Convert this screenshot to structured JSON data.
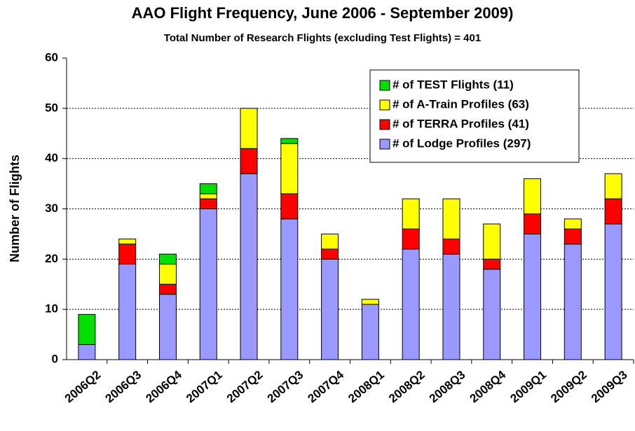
{
  "chart_data": {
    "type": "stacked-bar",
    "title": "AAO Flight Frequency, June 2006 - September 2009)",
    "subtitle": "Total Number of Research Flights (excluding Test Flights) = 401",
    "y_label": "Number of Flights",
    "categories": [
      "2006Q2",
      "2006Q3",
      "2006Q4",
      "2007Q1",
      "2007Q2",
      "2007Q3",
      "2007Q4",
      "2008Q1",
      "2008Q2",
      "2008Q3",
      "2008Q4",
      "2009Q1",
      "2009Q2",
      "2009Q3"
    ],
    "series": [
      {
        "name": "# of Lodge Profiles (297)",
        "color": "#9999ff",
        "values": [
          3,
          19,
          13,
          30,
          37,
          28,
          20,
          11,
          22,
          21,
          18,
          25,
          23,
          27
        ]
      },
      {
        "name": "# of TERRA Profiles (41)",
        "color": "#ff0000",
        "values": [
          0,
          4,
          2,
          2,
          5,
          5,
          2,
          0,
          4,
          3,
          2,
          4,
          3,
          5
        ]
      },
      {
        "name": "# of A-Train Profiles (63)",
        "color": "#ffff00",
        "values": [
          0,
          1,
          4,
          1,
          8,
          10,
          3,
          1,
          6,
          8,
          7,
          7,
          2,
          5
        ]
      },
      {
        "name": "# of TEST Flights (11)",
        "color": "#00e000",
        "values": [
          6,
          0,
          2,
          2,
          0,
          1,
          0,
          0,
          0,
          0,
          0,
          0,
          0,
          0
        ]
      }
    ],
    "ylim": [
      0,
      60
    ],
    "yticks": [
      0,
      10,
      20,
      30,
      40,
      50,
      60
    ],
    "grid": true,
    "legend": "upper right"
  }
}
